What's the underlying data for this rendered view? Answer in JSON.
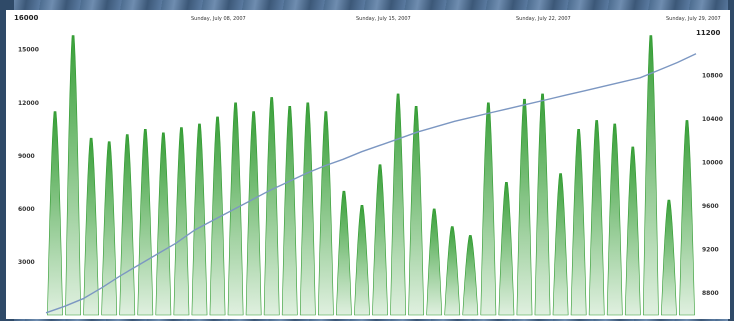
{
  "chart_data": {
    "type": "area",
    "title": "",
    "xlabel": "",
    "ylabel": "",
    "top_left_value": "16000",
    "top_right_value": "11200",
    "date_labels": [
      "Sunday, July 08, 2007",
      "Sunday, July 15, 2007",
      "Sunday, July 22, 2007",
      "Sunday, July 29, 2007"
    ],
    "left_axis": {
      "ticks": [
        "15000",
        "12000",
        "9000",
        "6000",
        "3000"
      ],
      "range": [
        0,
        16000
      ]
    },
    "right_axis": {
      "ticks": [
        "10800",
        "10400",
        "10000",
        "9600",
        "9200",
        "8800"
      ],
      "range": [
        8600,
        11200
      ]
    },
    "series": [
      {
        "type": "area",
        "axis": "left",
        "color": "#2e9a2e",
        "values": [
          11500,
          15800,
          10000,
          9800,
          10200,
          10500,
          10300,
          10600,
          10800,
          11200,
          12000,
          11500,
          12300,
          11800,
          12000,
          11500,
          7000,
          6200,
          8500,
          12500,
          11800,
          6000,
          5000,
          4500,
          12000,
          7500,
          12200,
          12500,
          8000,
          10500,
          11000,
          10800,
          9500,
          15800,
          6500,
          11000
        ]
      },
      {
        "type": "line",
        "axis": "right",
        "color": "#7c97c2",
        "values": [
          8620,
          8680,
          8750,
          8850,
          8960,
          9060,
          9160,
          9260,
          9380,
          9470,
          9560,
          9650,
          9740,
          9820,
          9900,
          9970,
          10030,
          10100,
          10160,
          10220,
          10280,
          10330,
          10380,
          10420,
          10460,
          10500,
          10540,
          10580,
          10620,
          10660,
          10700,
          10740,
          10780,
          10850,
          10920,
          11000
        ]
      }
    ],
    "grid": false,
    "legend": "none"
  }
}
